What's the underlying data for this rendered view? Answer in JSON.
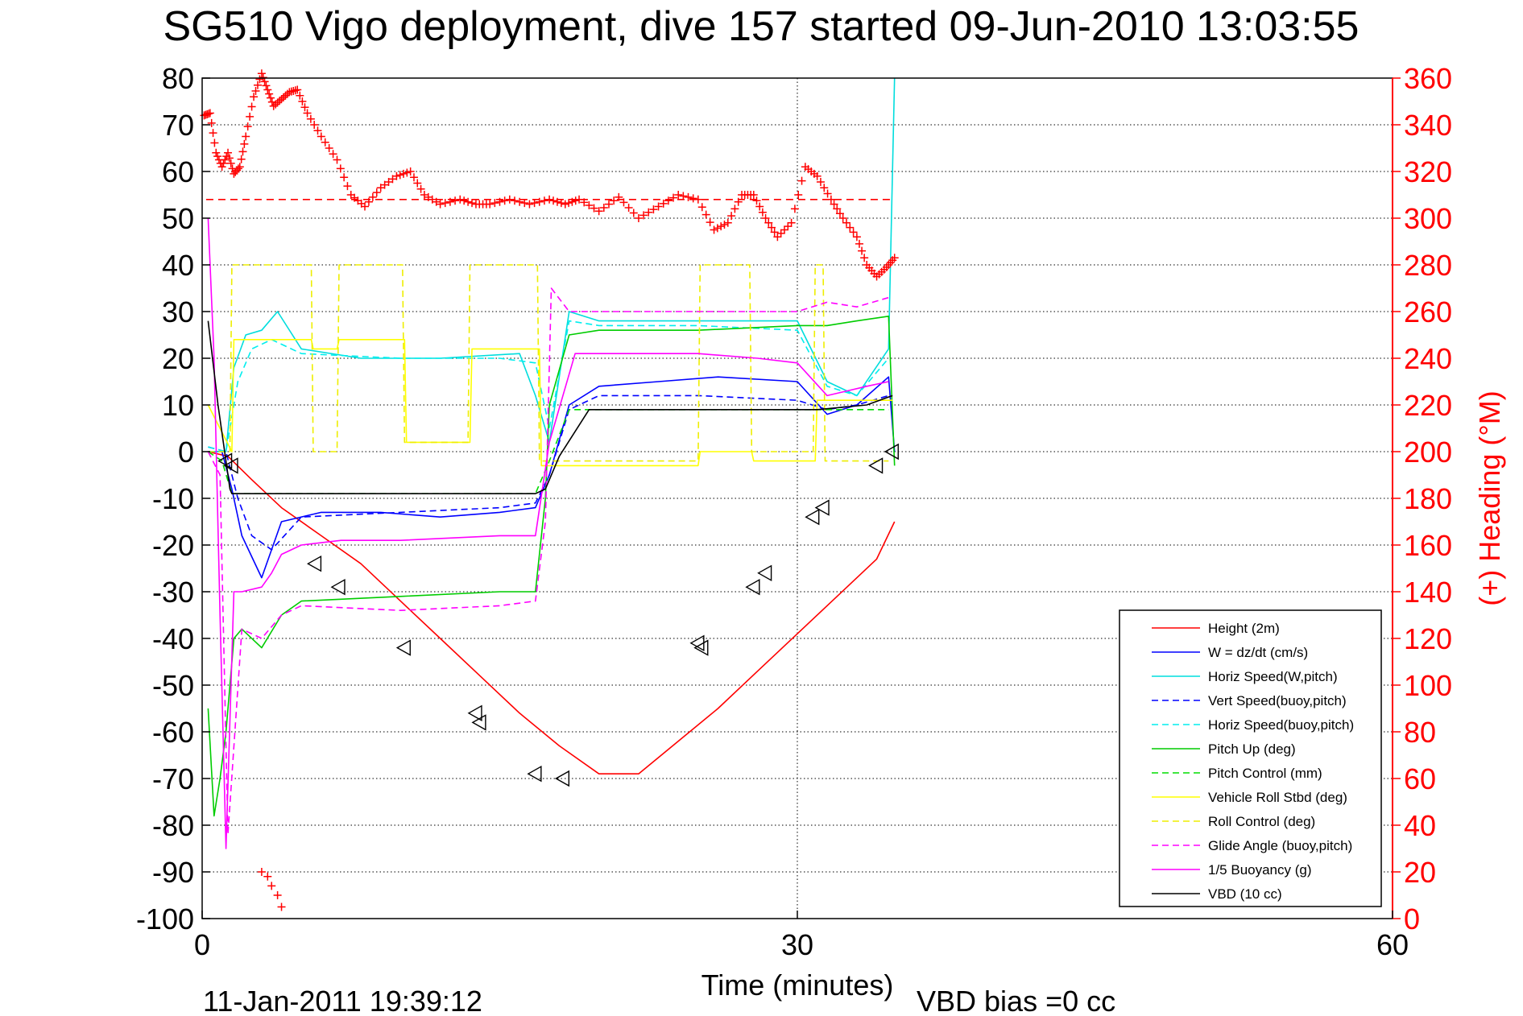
{
  "title": "SG510 Vigo deployment, dive 157 started 09-Jun-2010 13:03:55",
  "footer": {
    "timestamp": "11-Jan-2011 19:39:12",
    "vbd_bias": "VBD bias =0 cc"
  },
  "colors": {
    "height": "#ff0000",
    "w": "#0000ff",
    "horiz": "#00dddd",
    "vert_buoy": "#0000ff",
    "horiz_buoy": "#00eeee",
    "pitch": "#00cc00",
    "pitch_ctrl": "#00dd00",
    "roll": "#ffff00",
    "roll_ctrl": "#eeee00",
    "glide": "#ff00ff",
    "buoy": "#ff00ff",
    "vbd": "#000000",
    "heading": "#ff0000"
  },
  "chart_data": {
    "type": "line",
    "xlabel": "Time (minutes)",
    "ylabel_right": "(+) Heading (°M)",
    "xlim": [
      0,
      60
    ],
    "ylim": [
      -100,
      80
    ],
    "ylim_right": [
      0,
      360
    ],
    "xticks": [
      0,
      30,
      60
    ],
    "yticks": [
      -100,
      -90,
      -80,
      -70,
      -60,
      -50,
      -40,
      -30,
      -20,
      -10,
      0,
      10,
      20,
      30,
      40,
      50,
      60,
      70,
      80
    ],
    "yticks_right": [
      0,
      20,
      40,
      60,
      80,
      100,
      120,
      140,
      160,
      180,
      200,
      220,
      240,
      260,
      280,
      300,
      320,
      340,
      360
    ],
    "grid": true,
    "legend_position": "bottom-right",
    "series": [
      {
        "name": "Height (2m)",
        "key": "height",
        "style": "solid",
        "x": [
          0.3,
          1.3,
          2.5,
          4,
          6,
          8,
          10,
          12,
          14,
          16,
          18,
          20,
          22,
          24,
          26,
          28,
          30,
          32,
          34,
          34.9
        ],
        "y": [
          0,
          -1,
          -6,
          -12,
          -18,
          -24,
          -32,
          -40,
          -48,
          -56,
          -63,
          -69,
          -69,
          -62,
          -55,
          -47,
          -39,
          -31,
          -23,
          -15
        ]
      },
      {
        "name": "W = dz/dt (cm/s)",
        "key": "w",
        "style": "solid",
        "x": [
          0.3,
          1.0,
          1.5,
          2.0,
          3.0,
          4.0,
          6,
          9,
          12,
          15,
          16.8,
          17.5,
          18.5,
          20,
          23,
          26,
          30,
          31.5,
          33,
          34.6,
          34.9
        ],
        "y": [
          0,
          0,
          -8,
          -18,
          -27,
          -15,
          -13,
          -13,
          -14,
          -13,
          -12,
          -5,
          10,
          14,
          15,
          16,
          15,
          8,
          10,
          16,
          0
        ]
      },
      {
        "name": "Horiz Speed(W,pitch)",
        "key": "horiz",
        "style": "solid",
        "x": [
          0.3,
          1.2,
          1.6,
          2.2,
          3.0,
          3.8,
          5,
          8,
          12,
          16,
          16.8,
          17.5,
          18.5,
          20,
          25,
          30,
          31.5,
          33,
          34.6,
          34.9
        ],
        "y": [
          0,
          0,
          18,
          25,
          26,
          30,
          22,
          20,
          20,
          21,
          12,
          2,
          30,
          28,
          28,
          28,
          15,
          12,
          22,
          80
        ]
      },
      {
        "name": "Vert Speed(buoy,pitch)",
        "key": "vert_buoy",
        "style": "dashed",
        "x": [
          0.3,
          1.2,
          1.8,
          2.5,
          3.5,
          5,
          10,
          15,
          16.8,
          17.5,
          18.5,
          20,
          25,
          30,
          31.5,
          33,
          34.6
        ],
        "y": [
          1,
          0,
          -10,
          -18,
          -21,
          -14,
          -13,
          -12,
          -11,
          -5,
          9,
          12,
          12,
          11,
          9,
          10,
          12
        ]
      },
      {
        "name": "Horiz Speed(buoy,pitch)",
        "key": "horiz_buoy",
        "style": "dashed",
        "x": [
          0.3,
          1.2,
          1.8,
          2.5,
          3.5,
          5,
          10,
          15,
          16.8,
          17.5,
          18.5,
          20,
          25,
          30,
          31.5,
          33,
          34.6
        ],
        "y": [
          1,
          0,
          15,
          22,
          24,
          21,
          20,
          20,
          19,
          5,
          28,
          27,
          27,
          26,
          14,
          12,
          20
        ]
      },
      {
        "name": "Pitch Up (deg)",
        "key": "pitch",
        "style": "solid",
        "x": [
          0.3,
          0.6,
          0.9,
          1.2,
          1.6,
          2.0,
          3.0,
          4.0,
          5,
          10,
          15,
          16.8,
          17.3,
          17.5,
          18.5,
          20,
          25,
          30,
          31.5,
          33,
          34.6,
          34.9
        ],
        "y": [
          -55,
          -78,
          -70,
          -60,
          -40,
          -38,
          -42,
          -35,
          -32,
          -31,
          -30,
          -30,
          -10,
          10,
          25,
          26,
          26,
          27,
          27,
          28,
          29,
          -3
        ]
      },
      {
        "name": "Pitch Control (mm)",
        "key": "pitch_ctrl",
        "style": "dashed",
        "x": [
          0.3,
          1.0,
          1.5,
          16.8,
          17.5,
          18.5,
          34.6
        ],
        "y": [
          0,
          -2,
          -9,
          -9,
          -2,
          9,
          9
        ]
      },
      {
        "name": "Vehicle Roll Stbd (deg)",
        "key": "roll",
        "style": "solid",
        "x": [
          0.3,
          1.5,
          1.6,
          5.5,
          5.6,
          6.8,
          6.9,
          10.2,
          10.3,
          13.5,
          13.6,
          17,
          17.1,
          25,
          25.1,
          27.7,
          27.8,
          30.9,
          31.0,
          34.8
        ],
        "y": [
          10,
          0,
          24,
          24,
          22,
          22,
          24,
          24,
          2,
          2,
          22,
          22,
          -3,
          -3,
          0,
          0,
          -2,
          -2,
          11,
          11
        ]
      },
      {
        "name": "Roll Control (deg)",
        "key": "roll_ctrl",
        "style": "dashed",
        "x": [
          0.3,
          1.4,
          1.5,
          5.5,
          5.6,
          6.8,
          6.9,
          10.1,
          10.2,
          13.4,
          13.5,
          16.9,
          17.0,
          25.0,
          25.1,
          27.6,
          27.7,
          30.8,
          30.9,
          31.3,
          31.4,
          34.6
        ],
        "y": [
          0,
          0,
          40,
          40,
          0,
          0,
          40,
          40,
          2,
          2,
          40,
          40,
          -2,
          -2,
          40,
          40,
          0,
          0,
          40,
          40,
          -2,
          -2
        ]
      },
      {
        "name": "Glide Angle (buoy,pitch)",
        "key": "glide",
        "style": "dashed",
        "x": [
          0.3,
          0.9,
          1.3,
          2.0,
          3.0,
          4.0,
          5,
          10,
          15,
          16.8,
          17.3,
          17.6,
          18.5,
          20,
          25,
          30,
          31.5,
          33,
          34.6
        ],
        "y": [
          0,
          -5,
          -82,
          -38,
          -40,
          -35,
          -33,
          -34,
          -33,
          -32,
          -15,
          35,
          30,
          30,
          30,
          30,
          32,
          31,
          33
        ]
      },
      {
        "name": "1/5 Buoyancy (g)",
        "key": "buoy",
        "style": "solid",
        "x": [
          0.3,
          0.6,
          0.9,
          1.2,
          1.6,
          2.0,
          3.0,
          3.5,
          4.0,
          5.0,
          7,
          10,
          15,
          16.8,
          17.5,
          18.8,
          20,
          25,
          28,
          30,
          31.5,
          32.5,
          33.5,
          34.6
        ],
        "y": [
          50,
          20,
          -35,
          -85,
          -30,
          -30,
          -29,
          -26,
          -22,
          -20,
          -19,
          -19,
          -18,
          -18,
          2,
          21,
          21,
          21,
          20,
          19,
          12,
          13,
          14,
          15
        ]
      },
      {
        "name": "VBD (10 cc)",
        "key": "vbd",
        "style": "solid",
        "x": [
          0.3,
          0.8,
          1.4,
          1.5,
          16.8,
          17.3,
          18.0,
          19.5,
          30.0,
          31.0,
          33.5,
          34.8
        ],
        "y": [
          28,
          10,
          -8,
          -9,
          -9,
          -8,
          -1,
          9,
          9,
          9,
          10,
          12
        ]
      }
    ],
    "heading": {
      "name": "(+) Heading (°M)",
      "marker": "+",
      "target": 308,
      "x": [
        0.1,
        0.4,
        0.7,
        1.0,
        1.3,
        1.6,
        1.9,
        2.2,
        2.6,
        3.0,
        3.3,
        3.6,
        4.0,
        4.4,
        4.8,
        5.3,
        6.0,
        6.8,
        7.5,
        8.2,
        9.0,
        9.8,
        10.5,
        11.2,
        12.0,
        13.0,
        13.8,
        14.5,
        15.5,
        16.5,
        17.5,
        18.3,
        19.0,
        20.0,
        21.0,
        22.0,
        23.0,
        24.0,
        25.0,
        25.8,
        26.5,
        27.2,
        27.8,
        28.4,
        29.0,
        29.7,
        30.4,
        31.0,
        31.7,
        32.3,
        33.0,
        33.5,
        34.0,
        34.5,
        34.9
      ],
      "y": [
        344,
        345,
        328,
        322,
        328,
        319,
        322,
        335,
        352,
        362,
        355,
        348,
        351,
        354,
        355,
        345,
        335,
        325,
        310,
        305,
        313,
        318,
        320,
        310,
        306,
        308,
        306,
        306,
        308,
        306,
        308,
        306,
        308,
        303,
        309,
        300,
        305,
        310,
        308,
        295,
        298,
        310,
        310,
        300,
        292,
        298,
        322,
        318,
        308,
        300,
        292,
        280,
        275,
        279,
        283
      ]
    },
    "heading_south": {
      "x": [
        3.0,
        3.3,
        3.5,
        3.8,
        4.0
      ],
      "y": [
        20,
        18,
        14,
        10,
        5
      ]
    },
    "depth_markers": {
      "x": [
        1.2,
        1.5,
        5.7,
        6.9,
        10.2,
        13.8,
        14.0,
        16.8,
        18.2,
        25.0,
        25.2,
        27.8,
        28.4,
        30.8,
        31.3,
        34.0,
        34.8
      ],
      "y": [
        -2,
        -3,
        -24,
        -29,
        -42,
        -56,
        -58,
        -69,
        -70,
        -41,
        -42,
        -29,
        -26,
        -14,
        -12,
        -3,
        0
      ]
    }
  },
  "legend": [
    {
      "label": "Height (2m)",
      "key": "height",
      "style": "solid"
    },
    {
      "label": "W = dz/dt (cm/s)",
      "key": "w",
      "style": "solid"
    },
    {
      "label": "Horiz Speed(W,pitch)",
      "key": "horiz",
      "style": "solid"
    },
    {
      "label": "Vert Speed(buoy,pitch)",
      "key": "vert_buoy",
      "style": "dashed"
    },
    {
      "label": "Horiz Speed(buoy,pitch)",
      "key": "horiz_buoy",
      "style": "dashed"
    },
    {
      "label": "Pitch Up (deg)",
      "key": "pitch",
      "style": "solid"
    },
    {
      "label": "Pitch Control (mm)",
      "key": "pitch_ctrl",
      "style": "dashed"
    },
    {
      "label": "Vehicle Roll Stbd (deg)",
      "key": "roll",
      "style": "solid"
    },
    {
      "label": "Roll Control (deg)",
      "key": "roll_ctrl",
      "style": "dashed"
    },
    {
      "label": "Glide Angle (buoy,pitch)",
      "key": "glide",
      "style": "dashed"
    },
    {
      "label": "1/5 Buoyancy (g)",
      "key": "buoy",
      "style": "solid"
    },
    {
      "label": "VBD (10 cc)",
      "key": "vbd",
      "style": "solid"
    }
  ]
}
